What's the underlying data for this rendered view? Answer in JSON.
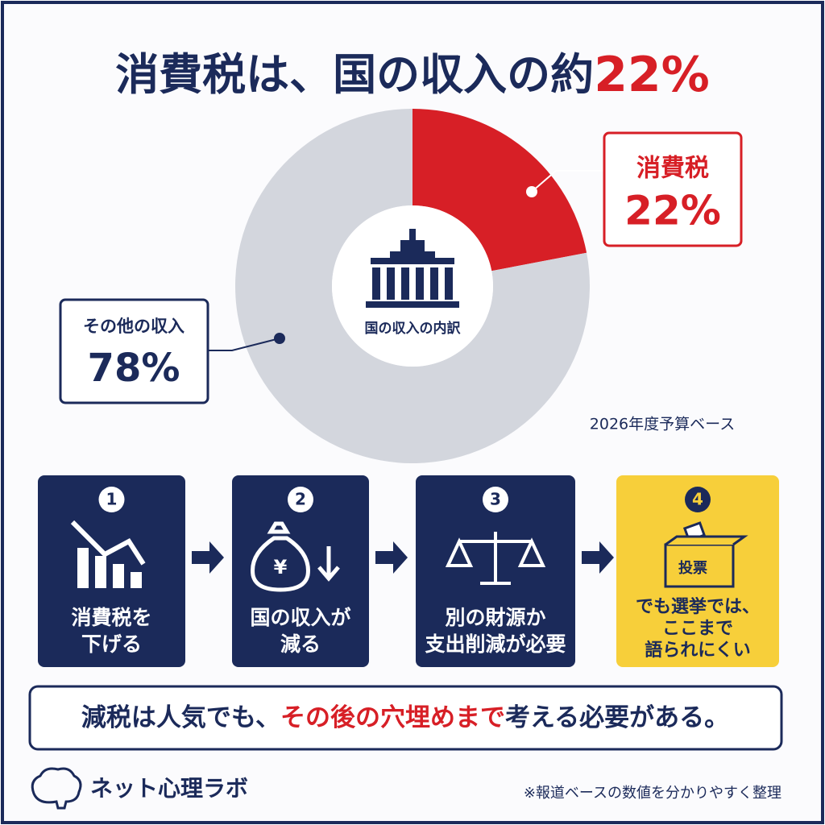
{
  "title": {
    "text": "消費税は、国の収入の約",
    "highlight": "22%"
  },
  "chart_data": {
    "type": "pie",
    "donut": true,
    "categories": [
      "消費税",
      "その他の収入"
    ],
    "values": [
      22,
      78
    ],
    "value_labels": [
      "22%",
      "78%"
    ],
    "colors": [
      "#d71f26",
      "#d3d6dd"
    ],
    "center_label": "国の収入の内訳",
    "note": "2026年度予算ベース"
  },
  "steps": [
    {
      "number": "1",
      "lines": [
        "消費税を",
        "下げる"
      ]
    },
    {
      "number": "2",
      "lines": [
        "国の収入が",
        "減る"
      ]
    },
    {
      "number": "3",
      "lines": [
        "別の財源か",
        "支出削減が必要"
      ]
    },
    {
      "number": "4",
      "lines": [
        "でも選挙では、",
        "ここまで",
        "語られにくい"
      ],
      "icon_label": "投票"
    }
  ],
  "conclusion": {
    "before": "減税は人気でも、",
    "highlight": "その後の穴埋めまで",
    "after": "考える必要がある。"
  },
  "footer": {
    "brand": "ネット心理ラボ",
    "note": "※報道ベースの数値を分かりやすく整理"
  }
}
